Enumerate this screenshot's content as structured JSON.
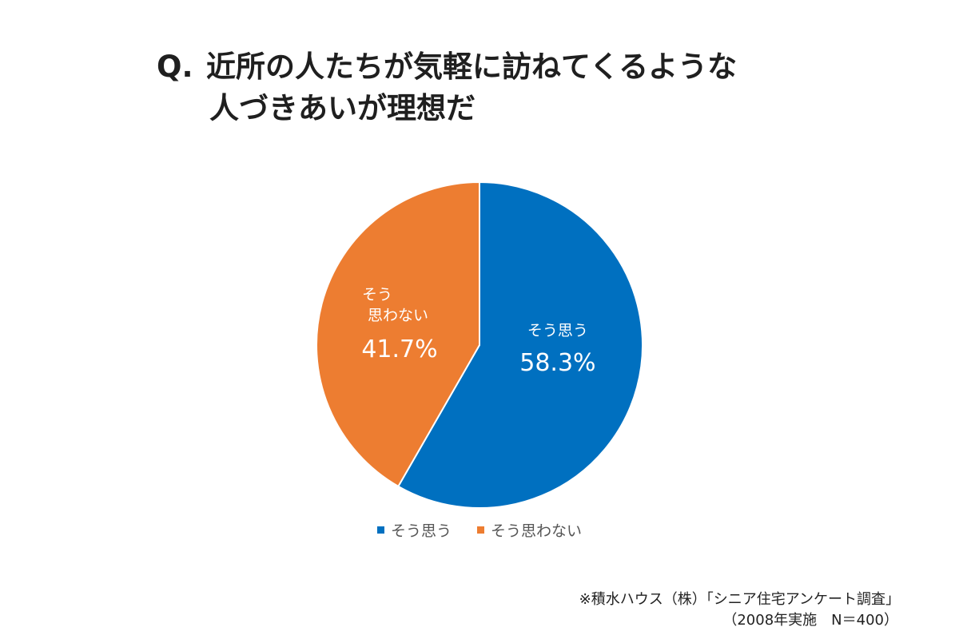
{
  "title": {
    "prefix": "Q.",
    "line1": "近所の人たちが気軽に訪ねてくるような",
    "line2": "人づきあいが理想だ"
  },
  "chart_data": {
    "type": "pie",
    "slices": [
      {
        "label": "そう思う",
        "value": 58.3,
        "display": "58.3%",
        "color": "#0070C0"
      },
      {
        "label": "そう思わない",
        "label_lines": [
          "そう",
          "思わない"
        ],
        "value": 41.7,
        "display": "41.7%",
        "color": "#ED7D31"
      }
    ],
    "legend": {
      "placement": "bottom",
      "items": [
        "そう思う",
        "そう思わない"
      ]
    }
  },
  "source": {
    "line1": "※積水ハウス（株）「シニア住宅アンケート調査」",
    "line2": "（2008年実施　N＝400）"
  }
}
